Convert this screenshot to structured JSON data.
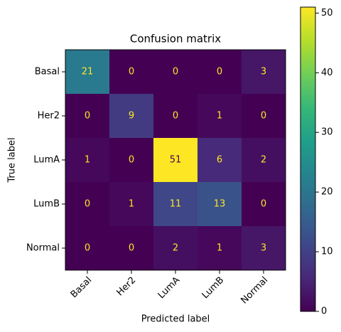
{
  "chart_data": {
    "type": "heatmap",
    "title": "Confusion matrix",
    "x_label": "Predicted label",
    "y_label": "True label",
    "x_categories": [
      "Basal",
      "Her2",
      "LumA",
      "LumB",
      "Normal"
    ],
    "y_categories": [
      "Basal",
      "Her2",
      "LumA",
      "LumB",
      "Normal"
    ],
    "values": [
      [
        21,
        0,
        0,
        0,
        3
      ],
      [
        0,
        9,
        0,
        1,
        0
      ],
      [
        1,
        0,
        51,
        6,
        2
      ],
      [
        0,
        1,
        11,
        13,
        0
      ],
      [
        0,
        0,
        2,
        1,
        3
      ]
    ],
    "colormap": "viridis",
    "zlim": [
      0,
      51
    ],
    "zticks": [
      0,
      10,
      20,
      30,
      40,
      50
    ]
  }
}
